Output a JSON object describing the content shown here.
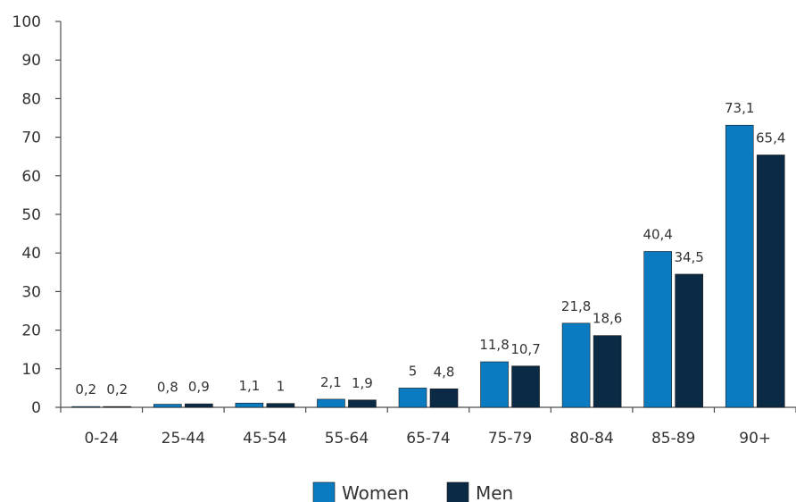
{
  "chart_data": {
    "type": "bar",
    "categories": [
      "0-24",
      "25-44",
      "45-54",
      "55-64",
      "65-74",
      "75-79",
      "80-84",
      "85-89",
      "90+"
    ],
    "series": [
      {
        "name": "Women",
        "color": "#0a7bc0",
        "values": [
          0.2,
          0.8,
          1.1,
          2.1,
          5,
          11.8,
          21.8,
          40.4,
          73.1
        ],
        "labels": [
          "0,2",
          "0,8",
          "1,1",
          "2,1",
          "5",
          "11,8",
          "21,8",
          "40,4",
          "73,1"
        ]
      },
      {
        "name": "Men",
        "color": "#0b2a45",
        "values": [
          0.2,
          0.9,
          1,
          1.9,
          4.8,
          10.7,
          18.6,
          34.5,
          65.4
        ],
        "labels": [
          "0,2",
          "0,9",
          "1",
          "1,9",
          "4,8",
          "10,7",
          "18,6",
          "34,5",
          "65,4"
        ]
      }
    ],
    "yticks": [
      "0",
      "10",
      "20",
      "30",
      "40",
      "50",
      "60",
      "70",
      "80",
      "90",
      "100"
    ],
    "ylim": [
      0,
      100
    ],
    "grid": false,
    "legend_position": "bottom-center",
    "title": "",
    "xlabel": "",
    "ylabel": ""
  }
}
